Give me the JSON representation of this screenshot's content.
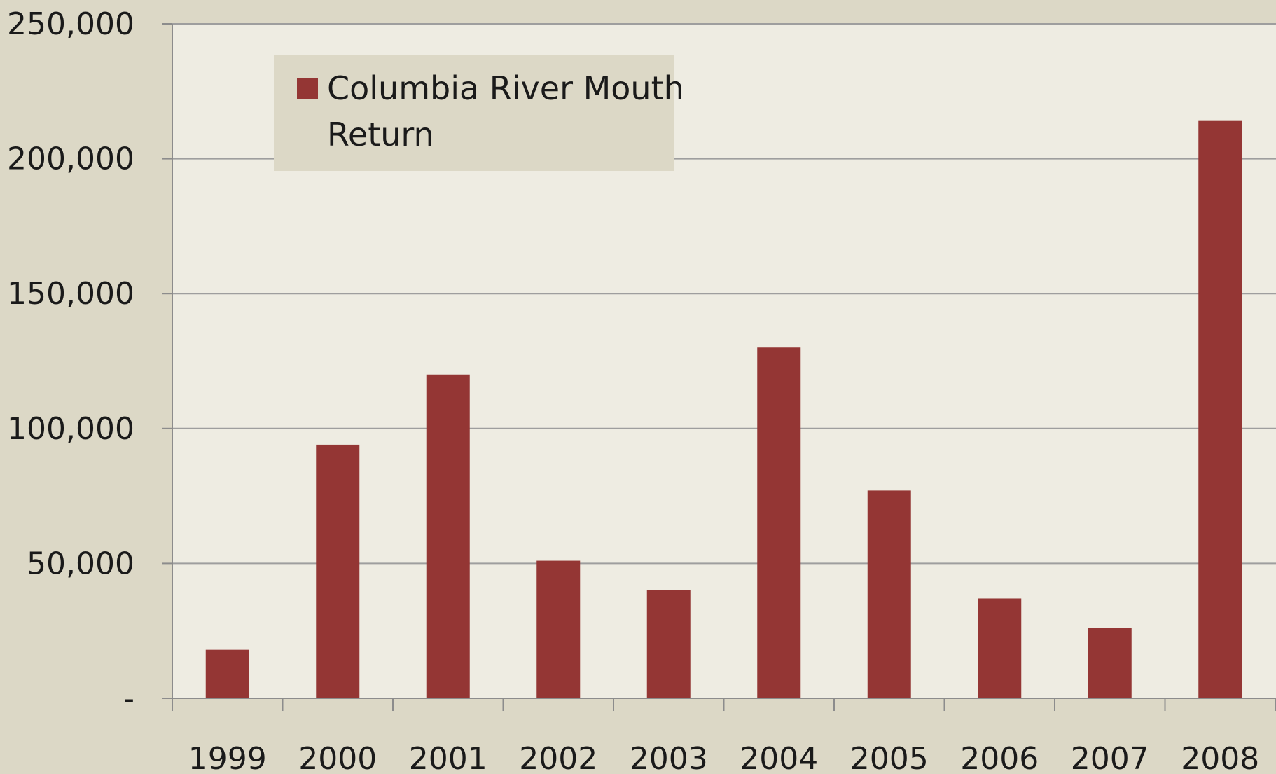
{
  "chart_data": {
    "type": "bar",
    "categories": [
      "1999",
      "2000",
      "2001",
      "2002",
      "2003",
      "2004",
      "2005",
      "2006",
      "2007",
      "2008"
    ],
    "series": [
      {
        "name": "Columbia River Mouth Return",
        "values": [
          18000,
          94000,
          120000,
          51000,
          40000,
          130000,
          77000,
          37000,
          26000,
          214000
        ]
      }
    ],
    "ylim": [
      0,
      250000
    ],
    "yticks": [
      0,
      50000,
      100000,
      150000,
      200000,
      250000
    ],
    "ytick_labels": [
      "-",
      "50,000",
      "100,000",
      "150,000",
      "200,000",
      "250,000"
    ],
    "grid": true,
    "legend_position": "top-left",
    "legend_lines": [
      "Columbia River Mouth",
      "Return"
    ],
    "colors": {
      "bar": "#943634",
      "plot_background": "#eeece2",
      "page_background": "#dcd8c6",
      "legend_background": "#dcd8c6",
      "gridline": "#9e9e9e",
      "axis": "#8c8c8c"
    }
  }
}
